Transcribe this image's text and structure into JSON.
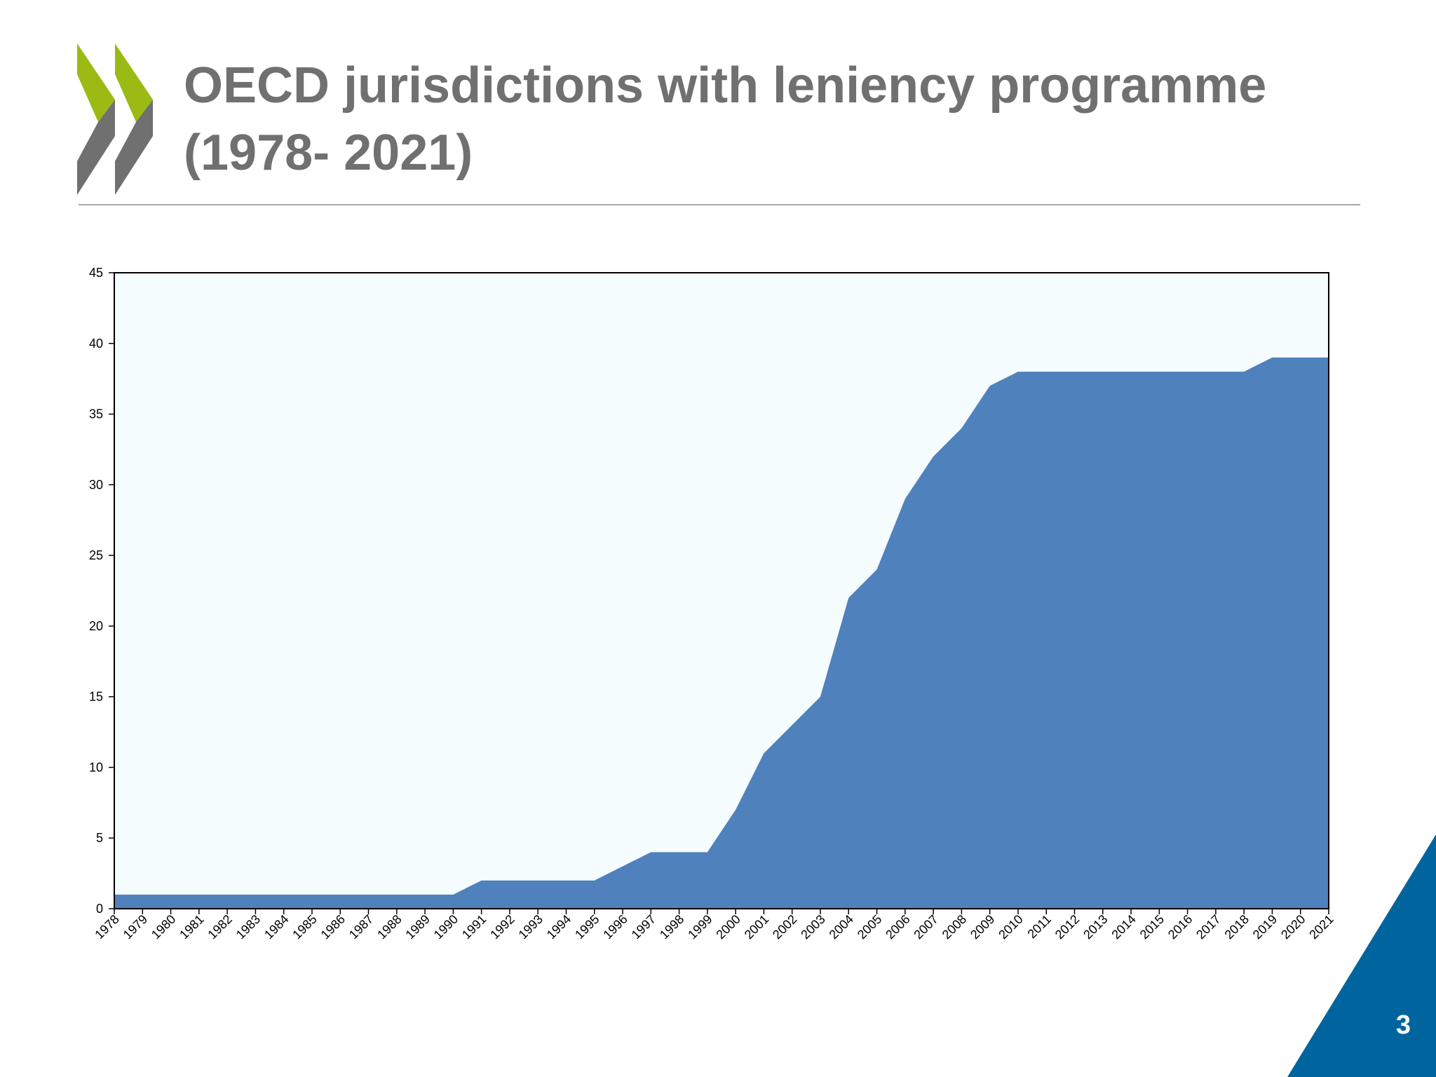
{
  "slide": {
    "title": "OECD jurisdictions with leniency programme (1978- 2021)",
    "page_number": "3",
    "colors": {
      "title": "#707070",
      "logo_green": "#9bbb14",
      "logo_grey": "#707070",
      "plot_background": "#f4fcfd",
      "area_fill": "#4f81bd",
      "corner_accent": "#00659e"
    },
    "icons": [
      "oecd-logo-icon"
    ]
  },
  "chart_data": {
    "type": "area",
    "title": "",
    "xlabel": "",
    "ylabel": "",
    "x": [
      "1978",
      "1979",
      "1980",
      "1981",
      "1982",
      "1983",
      "1984",
      "1985",
      "1986",
      "1987",
      "1988",
      "1989",
      "1990",
      "1991",
      "1992",
      "1993",
      "1994",
      "1995",
      "1996",
      "1997",
      "1998",
      "1999",
      "2000",
      "2001",
      "2002",
      "2003",
      "2004",
      "2005",
      "2006",
      "2007",
      "2008",
      "2009",
      "2010",
      "2011",
      "2012",
      "2013",
      "2014",
      "2015",
      "2016",
      "2017",
      "2018",
      "2019",
      "2020",
      "2021"
    ],
    "values": [
      1,
      1,
      1,
      1,
      1,
      1,
      1,
      1,
      1,
      1,
      1,
      1,
      1,
      2,
      2,
      2,
      2,
      2,
      3,
      4,
      4,
      4,
      7,
      11,
      13,
      15,
      22,
      24,
      29,
      32,
      34,
      37,
      38,
      38,
      38,
      38,
      38,
      38,
      38,
      38,
      38,
      39,
      39,
      39
    ],
    "ylim": [
      0,
      45
    ],
    "yticks": [
      0,
      5,
      10,
      15,
      20,
      25,
      30,
      35,
      40,
      45
    ],
    "grid": false,
    "legend": "none",
    "x_tick_rotation": "diagonal"
  }
}
